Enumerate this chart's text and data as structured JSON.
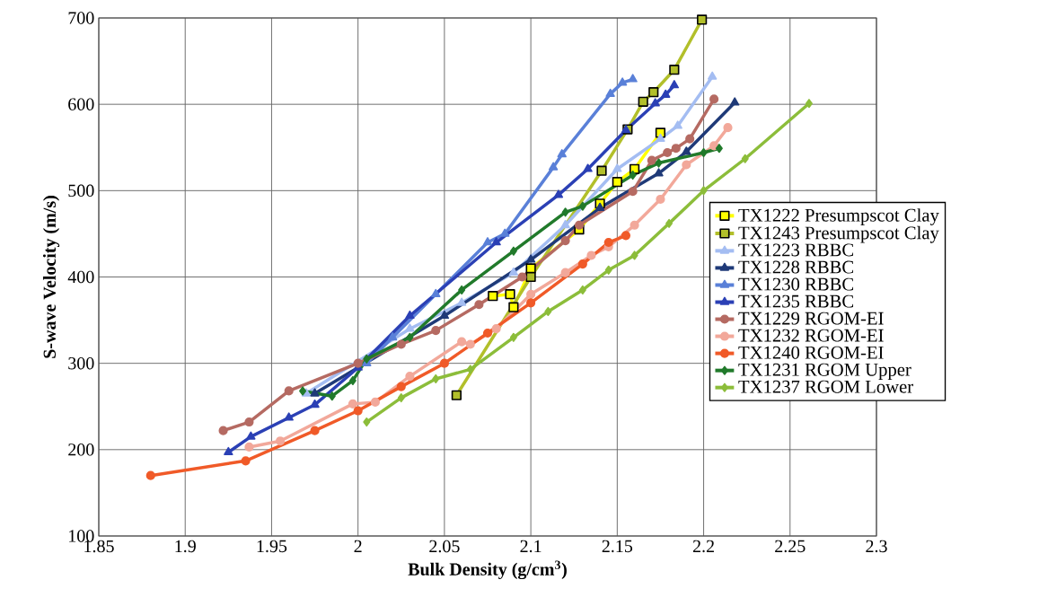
{
  "chart_data": {
    "type": "line",
    "xlabel": "Bulk Density (g/cm$^{3}$)",
    "ylabel": "S-wave Velocity (m/s)",
    "xlim": [
      1.85,
      2.3
    ],
    "ylim": [
      100,
      700
    ],
    "xticks": [
      1.85,
      1.9,
      1.95,
      2,
      2.05,
      2.1,
      2.15,
      2.2,
      2.25,
      2.3
    ],
    "yticks": [
      100,
      200,
      300,
      400,
      500,
      600,
      700
    ],
    "grid": true,
    "legend": "right",
    "series": [
      {
        "name": "TX1222 Presumpscot Clay",
        "color": "#ffff00",
        "marker": "square",
        "x": [
          2.078,
          2.088,
          2.09,
          2.1,
          2.128,
          2.14,
          2.15,
          2.16,
          2.175
        ],
        "values": [
          378,
          380,
          365,
          410,
          455,
          485,
          510,
          525,
          567
        ]
      },
      {
        "name": "TX1243 Presumpscot Clay",
        "color": "#b2bf2a",
        "marker": "square",
        "x": [
          2.057,
          2.1,
          2.128,
          2.141,
          2.156,
          2.165,
          2.171,
          2.183,
          2.199
        ],
        "values": [
          263,
          400,
          null,
          523,
          571,
          603,
          614,
          640,
          698
        ]
      },
      {
        "name": "TX1223 RBBC",
        "color": "#a4bdf2",
        "marker": "triangle",
        "x": [
          1.97,
          2.0,
          2.03,
          2.06,
          2.09,
          2.12,
          2.15,
          2.175,
          2.185,
          2.205
        ],
        "values": [
          265,
          null,
          340,
          370,
          405,
          460,
          525,
          560,
          575,
          632
        ]
      },
      {
        "name": "TX1228 RBBC",
        "color": "#1f3a78",
        "marker": "triangle",
        "x": [
          1.975,
          2.0,
          2.05,
          2.1,
          2.14,
          2.174,
          2.19,
          2.218
        ],
        "values": [
          265,
          null,
          355,
          420,
          480,
          520,
          545,
          602
        ]
      },
      {
        "name": "TX1230 RBBC",
        "color": "#5a80d8",
        "marker": "triangle",
        "x": [
          2.005,
          2.02,
          2.045,
          2.075,
          2.085,
          2.113,
          2.118,
          2.146,
          2.153,
          2.159
        ],
        "values": [
          300,
          330,
          380,
          440,
          450,
          527,
          542,
          612,
          625,
          629
        ]
      },
      {
        "name": "TX1235 RBBC",
        "color": "#2b40b5",
        "marker": "triangle",
        "x": [
          1.925,
          1.938,
          1.96,
          1.975,
          2.0,
          2.03,
          2.08,
          2.116,
          2.133,
          2.155,
          2.172,
          2.178,
          2.183
        ],
        "values": [
          197,
          215,
          237,
          252,
          295,
          355,
          440,
          495,
          525,
          570,
          601,
          611,
          622
        ]
      },
      {
        "name": "TX1229 RGOM-EI",
        "color": "#b56a62",
        "marker": "circle",
        "x": [
          1.922,
          1.937,
          1.96,
          2.0,
          2.025,
          2.045,
          2.07,
          2.095,
          2.12,
          2.128,
          2.159,
          2.17,
          2.179,
          2.184,
          2.192,
          2.206
        ],
        "values": [
          222,
          232,
          268,
          300,
          322,
          338,
          368,
          400,
          442,
          460,
          499,
          535,
          544,
          549,
          560,
          606
        ]
      },
      {
        "name": "TX1232 RGOM-EI",
        "color": "#f2a89a",
        "marker": "circle",
        "x": [
          1.937,
          1.955,
          1.975,
          1.997,
          2.01,
          2.03,
          2.06,
          2.065,
          2.08,
          2.1,
          2.12,
          2.135,
          2.145,
          2.16,
          2.175,
          2.19,
          2.206,
          2.214
        ],
        "values": [
          203,
          210,
          null,
          253,
          255,
          285,
          325,
          322,
          340,
          380,
          405,
          425,
          435,
          460,
          490,
          530,
          552,
          573
        ]
      },
      {
        "name": "TX1240 RGOM-EI",
        "color": "#f05a28",
        "marker": "circle",
        "x": [
          1.88,
          1.935,
          1.975,
          2.0,
          2.025,
          2.05,
          2.075,
          2.1,
          2.13,
          2.145,
          2.155
        ],
        "values": [
          170,
          187,
          222,
          245,
          273,
          300,
          335,
          370,
          415,
          440,
          448
        ]
      },
      {
        "name": "TX1231 RGOM Upper",
        "color": "#217a2b",
        "marker": "diamond",
        "x": [
          1.968,
          1.985,
          1.997,
          2.005,
          2.03,
          2.06,
          2.09,
          2.12,
          2.13,
          2.159,
          2.174,
          2.2,
          2.209
        ],
        "values": [
          268,
          262,
          280,
          305,
          330,
          385,
          430,
          475,
          482,
          518,
          532,
          544,
          549
        ]
      },
      {
        "name": "TX1237 RGOM Lower",
        "color": "#8cbd3a",
        "marker": "diamond",
        "x": [
          2.005,
          2.025,
          2.045,
          2.065,
          2.09,
          2.11,
          2.13,
          2.145,
          2.16,
          2.18,
          2.2,
          2.224,
          2.261
        ],
        "values": [
          232,
          260,
          282,
          293,
          330,
          360,
          385,
          408,
          425,
          462,
          500,
          537,
          601
        ]
      }
    ]
  }
}
